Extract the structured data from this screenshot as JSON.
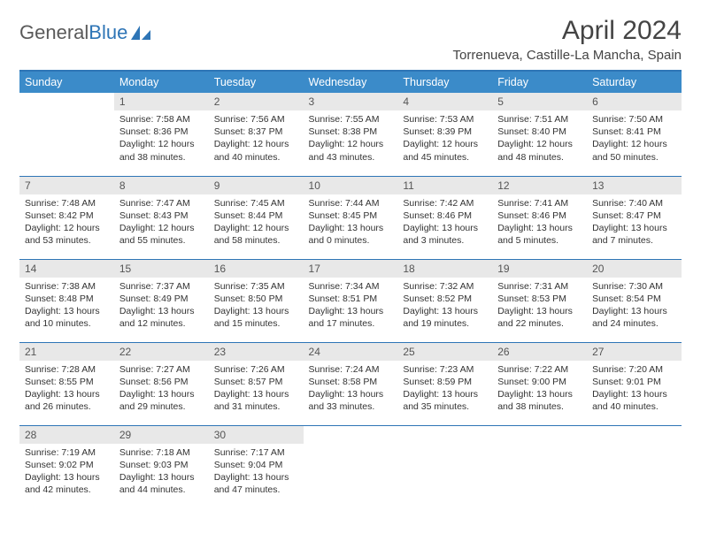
{
  "brand": {
    "part1": "General",
    "part2": "Blue"
  },
  "title": "April 2024",
  "location": "Torrenueva, Castille-La Mancha, Spain",
  "day_headers": [
    "Sunday",
    "Monday",
    "Tuesday",
    "Wednesday",
    "Thursday",
    "Friday",
    "Saturday"
  ],
  "colors": {
    "header_bg": "#3b8bc9",
    "border": "#2e75b6",
    "daynum_bg": "#e8e8e8",
    "text": "#333333"
  },
  "typography": {
    "title_fontsize": 30,
    "location_fontsize": 15,
    "header_fontsize": 12.5,
    "daynum_fontsize": 12,
    "body_fontsize": 10.5
  },
  "layout": {
    "columns": 7,
    "rows": 5,
    "start_offset": 1
  },
  "days": [
    {
      "n": 1,
      "sunrise": "7:58 AM",
      "sunset": "8:36 PM",
      "daylight": "12 hours and 38 minutes."
    },
    {
      "n": 2,
      "sunrise": "7:56 AM",
      "sunset": "8:37 PM",
      "daylight": "12 hours and 40 minutes."
    },
    {
      "n": 3,
      "sunrise": "7:55 AM",
      "sunset": "8:38 PM",
      "daylight": "12 hours and 43 minutes."
    },
    {
      "n": 4,
      "sunrise": "7:53 AM",
      "sunset": "8:39 PM",
      "daylight": "12 hours and 45 minutes."
    },
    {
      "n": 5,
      "sunrise": "7:51 AM",
      "sunset": "8:40 PM",
      "daylight": "12 hours and 48 minutes."
    },
    {
      "n": 6,
      "sunrise": "7:50 AM",
      "sunset": "8:41 PM",
      "daylight": "12 hours and 50 minutes."
    },
    {
      "n": 7,
      "sunrise": "7:48 AM",
      "sunset": "8:42 PM",
      "daylight": "12 hours and 53 minutes."
    },
    {
      "n": 8,
      "sunrise": "7:47 AM",
      "sunset": "8:43 PM",
      "daylight": "12 hours and 55 minutes."
    },
    {
      "n": 9,
      "sunrise": "7:45 AM",
      "sunset": "8:44 PM",
      "daylight": "12 hours and 58 minutes."
    },
    {
      "n": 10,
      "sunrise": "7:44 AM",
      "sunset": "8:45 PM",
      "daylight": "13 hours and 0 minutes."
    },
    {
      "n": 11,
      "sunrise": "7:42 AM",
      "sunset": "8:46 PM",
      "daylight": "13 hours and 3 minutes."
    },
    {
      "n": 12,
      "sunrise": "7:41 AM",
      "sunset": "8:46 PM",
      "daylight": "13 hours and 5 minutes."
    },
    {
      "n": 13,
      "sunrise": "7:40 AM",
      "sunset": "8:47 PM",
      "daylight": "13 hours and 7 minutes."
    },
    {
      "n": 14,
      "sunrise": "7:38 AM",
      "sunset": "8:48 PM",
      "daylight": "13 hours and 10 minutes."
    },
    {
      "n": 15,
      "sunrise": "7:37 AM",
      "sunset": "8:49 PM",
      "daylight": "13 hours and 12 minutes."
    },
    {
      "n": 16,
      "sunrise": "7:35 AM",
      "sunset": "8:50 PM",
      "daylight": "13 hours and 15 minutes."
    },
    {
      "n": 17,
      "sunrise": "7:34 AM",
      "sunset": "8:51 PM",
      "daylight": "13 hours and 17 minutes."
    },
    {
      "n": 18,
      "sunrise": "7:32 AM",
      "sunset": "8:52 PM",
      "daylight": "13 hours and 19 minutes."
    },
    {
      "n": 19,
      "sunrise": "7:31 AM",
      "sunset": "8:53 PM",
      "daylight": "13 hours and 22 minutes."
    },
    {
      "n": 20,
      "sunrise": "7:30 AM",
      "sunset": "8:54 PM",
      "daylight": "13 hours and 24 minutes."
    },
    {
      "n": 21,
      "sunrise": "7:28 AM",
      "sunset": "8:55 PM",
      "daylight": "13 hours and 26 minutes."
    },
    {
      "n": 22,
      "sunrise": "7:27 AM",
      "sunset": "8:56 PM",
      "daylight": "13 hours and 29 minutes."
    },
    {
      "n": 23,
      "sunrise": "7:26 AM",
      "sunset": "8:57 PM",
      "daylight": "13 hours and 31 minutes."
    },
    {
      "n": 24,
      "sunrise": "7:24 AM",
      "sunset": "8:58 PM",
      "daylight": "13 hours and 33 minutes."
    },
    {
      "n": 25,
      "sunrise": "7:23 AM",
      "sunset": "8:59 PM",
      "daylight": "13 hours and 35 minutes."
    },
    {
      "n": 26,
      "sunrise": "7:22 AM",
      "sunset": "9:00 PM",
      "daylight": "13 hours and 38 minutes."
    },
    {
      "n": 27,
      "sunrise": "7:20 AM",
      "sunset": "9:01 PM",
      "daylight": "13 hours and 40 minutes."
    },
    {
      "n": 28,
      "sunrise": "7:19 AM",
      "sunset": "9:02 PM",
      "daylight": "13 hours and 42 minutes."
    },
    {
      "n": 29,
      "sunrise": "7:18 AM",
      "sunset": "9:03 PM",
      "daylight": "13 hours and 44 minutes."
    },
    {
      "n": 30,
      "sunrise": "7:17 AM",
      "sunset": "9:04 PM",
      "daylight": "13 hours and 47 minutes."
    }
  ],
  "labels": {
    "sunrise": "Sunrise:",
    "sunset": "Sunset:",
    "daylight": "Daylight:"
  }
}
